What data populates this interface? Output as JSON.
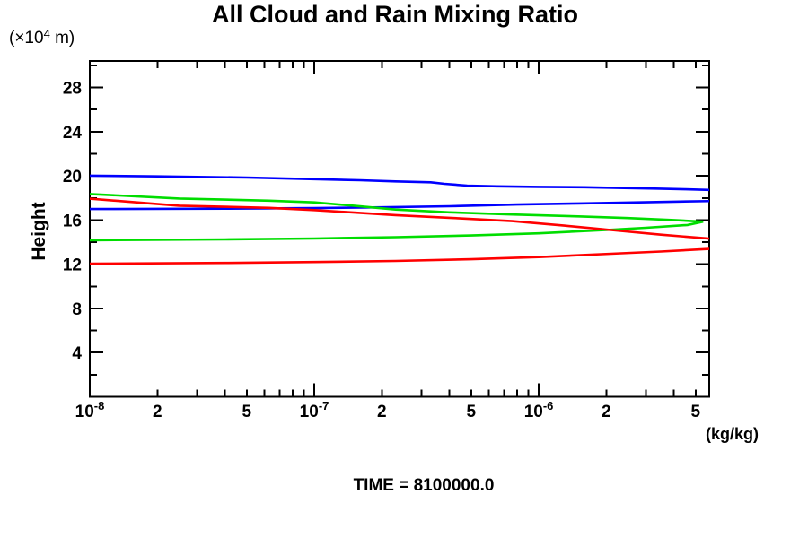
{
  "page": {
    "title": "All Cloud and Rain Mixing Ratio",
    "time_label": "TIME = 8100000.0"
  },
  "axes": {
    "y_label": "Height",
    "y_unit_parts": {
      "pre": "(×10",
      "sup": "4",
      "post": " m)"
    },
    "x_unit": "(kg/kg)"
  },
  "chart_data": {
    "type": "line",
    "title": "All Cloud and Rain Mixing Ratio",
    "xlabel": "(kg/kg)",
    "ylabel": "Height (×10^4 m)",
    "annotation": "TIME = 8100000.0",
    "x_scale": "log",
    "xlim": [
      1e-08,
      5.75e-06
    ],
    "ylim": [
      0,
      30.4
    ],
    "grid": false,
    "legend": "none",
    "x_ticks": [
      {
        "v": 1e-08,
        "base": "10",
        "sup": "-8"
      },
      {
        "v": 2e-08,
        "label": "2"
      },
      {
        "v": 5e-08,
        "label": "5"
      },
      {
        "v": 1e-07,
        "base": "10",
        "sup": "-7"
      },
      {
        "v": 2e-07,
        "label": "2"
      },
      {
        "v": 5e-07,
        "label": "5"
      },
      {
        "v": 1e-06,
        "base": "10",
        "sup": "-6"
      },
      {
        "v": 2e-06,
        "label": "2"
      },
      {
        "v": 5e-06,
        "label": "5"
      }
    ],
    "y_ticks_major": [
      4,
      8,
      12,
      16,
      20,
      24,
      28
    ],
    "y_ticks_minor": [
      2,
      6,
      10,
      14,
      18,
      22,
      26,
      30
    ],
    "series": [
      {
        "name": "profile-blue",
        "color": "#0000ff",
        "points": [
          [
            1e-08,
            20.02
          ],
          [
            2e-08,
            19.95
          ],
          [
            5e-08,
            19.85
          ],
          [
            1e-07,
            19.7
          ],
          [
            1.6e-07,
            19.6
          ],
          [
            2.3e-07,
            19.5
          ],
          [
            3.3e-07,
            19.42
          ],
          [
            3.8e-07,
            19.28
          ],
          [
            4.8e-07,
            19.12
          ],
          [
            6.5e-07,
            19.05
          ],
          [
            1e-06,
            19.0
          ],
          [
            1.6e-06,
            18.97
          ],
          [
            2.4e-06,
            18.9
          ],
          [
            3.3e-06,
            18.85
          ],
          [
            4.5e-06,
            18.78
          ],
          [
            5.9e-06,
            18.72
          ],
          [
            8e-06,
            18.2
          ],
          [
            5.9e-06,
            17.72
          ],
          [
            4e-06,
            17.66
          ],
          [
            2.8e-06,
            17.6
          ],
          [
            1.5e-06,
            17.5
          ],
          [
            8e-07,
            17.4
          ],
          [
            4e-07,
            17.25
          ],
          [
            2e-07,
            17.15
          ],
          [
            1e-07,
            17.08
          ],
          [
            4e-08,
            17.03
          ],
          [
            1e-08,
            17.0
          ]
        ]
      },
      {
        "name": "profile-green",
        "color": "#00dd00",
        "points": [
          [
            1e-08,
            18.35
          ],
          [
            2.5e-08,
            17.95
          ],
          [
            6.3e-08,
            17.75
          ],
          [
            1e-07,
            17.6
          ],
          [
            1.5e-07,
            17.3
          ],
          [
            2.3e-07,
            16.95
          ],
          [
            4e-07,
            16.7
          ],
          [
            7.6e-07,
            16.5
          ],
          [
            1.5e-06,
            16.33
          ],
          [
            2.5e-06,
            16.18
          ],
          [
            4e-06,
            16.0
          ],
          [
            5.4e-06,
            15.85
          ],
          [
            4.6e-06,
            15.55
          ],
          [
            3e-06,
            15.3
          ],
          [
            2e-06,
            15.1
          ],
          [
            1e-06,
            14.8
          ],
          [
            5e-07,
            14.6
          ],
          [
            2.3e-07,
            14.45
          ],
          [
            1e-07,
            14.33
          ],
          [
            4e-08,
            14.25
          ],
          [
            1e-08,
            14.17
          ]
        ]
      },
      {
        "name": "profile-red",
        "color": "#ff0000",
        "points": [
          [
            1e-08,
            17.93
          ],
          [
            2.5e-08,
            17.3
          ],
          [
            6.3e-08,
            17.1
          ],
          [
            1e-07,
            16.9
          ],
          [
            2.3e-07,
            16.45
          ],
          [
            4e-07,
            16.2
          ],
          [
            7.6e-07,
            15.9
          ],
          [
            1.3e-06,
            15.5
          ],
          [
            2.1e-06,
            15.1
          ],
          [
            3.5e-06,
            14.68
          ],
          [
            5.9e-06,
            14.3
          ],
          [
            8e-06,
            13.85
          ],
          [
            5.9e-06,
            13.4
          ],
          [
            3.5e-06,
            13.15
          ],
          [
            2.1e-06,
            12.95
          ],
          [
            1e-06,
            12.65
          ],
          [
            5e-07,
            12.45
          ],
          [
            2.3e-07,
            12.3
          ],
          [
            1e-07,
            12.2
          ],
          [
            4e-08,
            12.12
          ],
          [
            1e-08,
            12.05
          ]
        ]
      }
    ]
  },
  "colors": {
    "axis": "#000000",
    "background": "#ffffff"
  }
}
